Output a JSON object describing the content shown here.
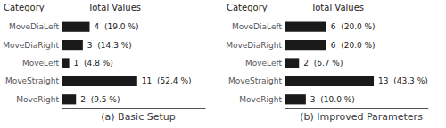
{
  "chart_data": [
    {
      "type": "bar",
      "orientation": "horizontal",
      "title": "(a) Basic Setup",
      "annotations": [
        "Category",
        "Total Values"
      ],
      "categories": [
        "MoveDiaLeft",
        "MoveDiaRight",
        "MoveLeft",
        "MoveStraight",
        "MoveRight"
      ],
      "values": [
        4,
        3,
        1,
        11,
        2
      ],
      "value_labels": [
        "4  (19.0 %)",
        "3  (14.3 %)",
        "1  (4.8 %)",
        "11  (52.4 %)",
        "2  (9.5 %)"
      ],
      "color": "#1a1a1a",
      "xlim": [
        0,
        21
      ],
      "data_labels": true,
      "tick_labels": "y",
      "grid": false
    },
    {
      "type": "bar",
      "orientation": "horizontal",
      "title": "(b) Improved Parameters",
      "annotations": [
        "Category",
        "Total Values"
      ],
      "categories": [
        "MoveDiaLeft",
        "MoveDiaRight",
        "MoveLeft",
        "MoveStraight",
        "MoveRight"
      ],
      "values": [
        6,
        6,
        2,
        13,
        3
      ],
      "value_labels": [
        "6  (20.0 %)",
        "6  (20.0 %)",
        "2  (6.7 %)",
        "13  (43.3 %)",
        "3  (10.0 %)"
      ],
      "color": "#1a1a1a",
      "xlim": [
        0,
        21
      ],
      "data_labels": true,
      "tick_labels": "y",
      "grid": false
    }
  ]
}
